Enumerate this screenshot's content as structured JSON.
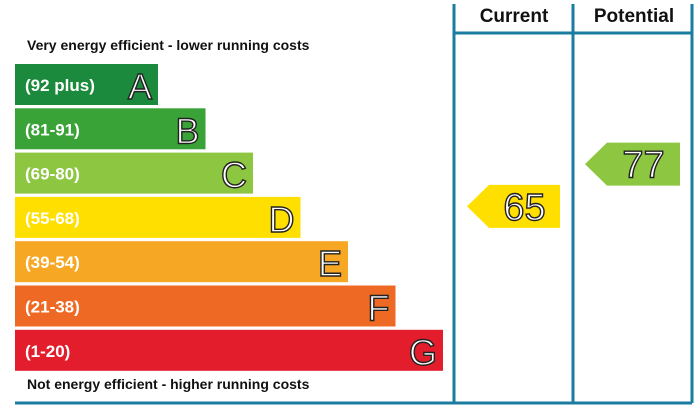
{
  "chart_data": {
    "type": "bar",
    "top_caption": "Very energy efficient - lower running costs",
    "bottom_caption": "Not energy efficient - higher running costs",
    "columns": [
      "Current",
      "Potential"
    ],
    "bands": [
      {
        "range": "(92 plus)",
        "letter": "A",
        "color": "#1b8a3c"
      },
      {
        "range": "(81-91)",
        "letter": "B",
        "color": "#3aa338"
      },
      {
        "range": "(69-80)",
        "letter": "C",
        "color": "#8dc641"
      },
      {
        "range": "(55-68)",
        "letter": "D",
        "color": "#ffdf00"
      },
      {
        "range": "(39-54)",
        "letter": "E",
        "color": "#f6a724"
      },
      {
        "range": "(21-38)",
        "letter": "F",
        "color": "#ee6a24"
      },
      {
        "range": "(1-20)",
        "letter": "G",
        "color": "#e31d2b"
      }
    ],
    "current": {
      "value": 65,
      "band": "D",
      "color": "#ffdf00"
    },
    "potential": {
      "value": 77,
      "band": "C",
      "color": "#8dc641"
    },
    "frame_color": "#1a7ca0"
  }
}
